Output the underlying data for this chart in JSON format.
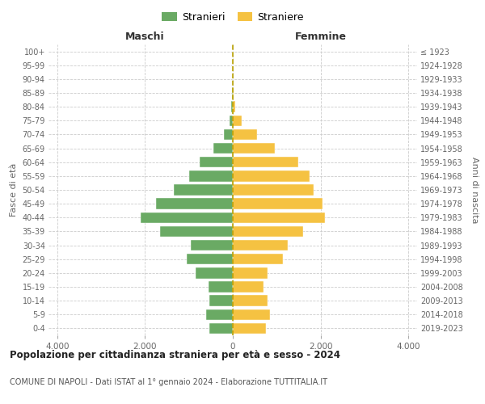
{
  "age_groups": [
    "0-4",
    "5-9",
    "10-14",
    "15-19",
    "20-24",
    "25-29",
    "30-34",
    "35-39",
    "40-44",
    "45-49",
    "50-54",
    "55-59",
    "60-64",
    "65-69",
    "70-74",
    "75-79",
    "80-84",
    "85-89",
    "90-94",
    "95-99",
    "100+"
  ],
  "birth_years": [
    "2019-2023",
    "2014-2018",
    "2009-2013",
    "2004-2008",
    "1999-2003",
    "1994-1998",
    "1989-1993",
    "1984-1988",
    "1979-1983",
    "1974-1978",
    "1969-1973",
    "1964-1968",
    "1959-1963",
    "1954-1958",
    "1949-1953",
    "1944-1948",
    "1939-1943",
    "1934-1938",
    "1929-1933",
    "1924-1928",
    "≤ 1923"
  ],
  "males": [
    530,
    600,
    530,
    550,
    850,
    1050,
    950,
    1650,
    2100,
    1750,
    1350,
    1000,
    750,
    450,
    200,
    80,
    30,
    10,
    5,
    5,
    5
  ],
  "females": [
    750,
    850,
    800,
    700,
    800,
    1150,
    1250,
    1600,
    2100,
    2050,
    1850,
    1750,
    1500,
    950,
    550,
    200,
    50,
    10,
    5,
    5,
    5
  ],
  "male_color": "#6aaa64",
  "female_color": "#f5c242",
  "grid_color": "#cccccc",
  "title": "Popolazione per cittadinanza straniera per età e sesso - 2024",
  "subtitle": "COMUNE DI NAPOLI - Dati ISTAT al 1° gennaio 2024 - Elaborazione TUTTITALIA.IT",
  "header_left": "Maschi",
  "header_right": "Femmine",
  "ylabel_left": "Fasce di età",
  "ylabel_right": "Anni di nascita",
  "legend_male": "Stranieri",
  "legend_female": "Straniere",
  "xlim": 4200,
  "xtick_vals": [
    -4000,
    -2000,
    0,
    2000,
    4000
  ],
  "xtick_labels": [
    "4.000",
    "2.000",
    "0",
    "2.000",
    "4.000"
  ]
}
